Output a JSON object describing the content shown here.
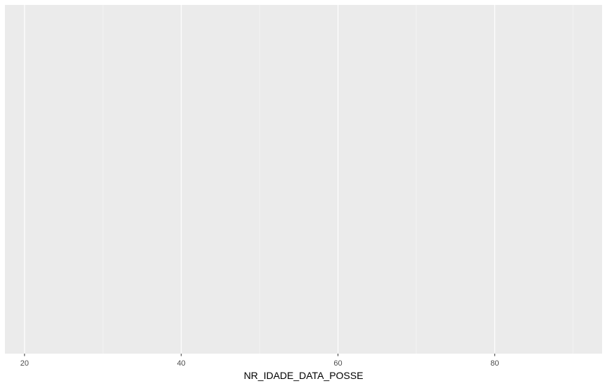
{
  "chart_data": {
    "type": "scatter",
    "title": "",
    "xlabel": "NR_IDADE_DATA_POSSE",
    "ylabel": "",
    "xlim": [
      17.5,
      93.7
    ],
    "x_major_ticks": [
      20,
      40,
      60,
      80
    ],
    "x_tick_labels": [
      "20",
      "40",
      "60",
      "80"
    ],
    "x_minor_ticks": [
      30,
      50,
      70,
      90
    ],
    "y_ticks": [],
    "series": [],
    "grid": "vertical",
    "legend": "none",
    "colors": {
      "panel_background": "#ebebeb",
      "grid_major": "#ffffff",
      "grid_minor": "#f7f7f7",
      "tick_text": "#4d4d4d",
      "tick_mark": "#333333",
      "axis_title": "#000000",
      "page_background": "#ffffff"
    }
  }
}
